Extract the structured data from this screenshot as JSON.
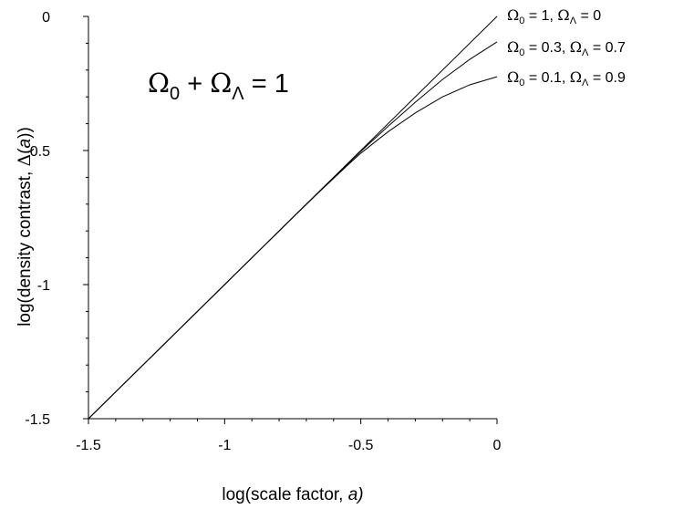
{
  "chart_data": {
    "type": "line",
    "xlabel": "log(scale factor, a)",
    "xlabel_parts": {
      "pre": "log(scale factor, ",
      "var": "a",
      "post": ")"
    },
    "ylabel": "log(density contrast, Δ(a))",
    "ylabel_parts": {
      "pre": "log(density contrast, ",
      "sym": "Δ",
      "open": "(",
      "var": "a",
      "post": "))"
    },
    "xlim": [
      -1.5,
      0
    ],
    "ylim": [
      -1.5,
      0
    ],
    "x_ticks": [
      {
        "value": -1.5,
        "label": "-1.5"
      },
      {
        "value": -1,
        "label": "-1"
      },
      {
        "value": -0.5,
        "label": "-0.5"
      },
      {
        "value": 0,
        "label": "0"
      }
    ],
    "y_ticks": [
      {
        "value": 0,
        "label": "0"
      },
      {
        "value": -0.5,
        "label": "-0.5"
      },
      {
        "value": -1,
        "label": "-1"
      },
      {
        "value": -1.5,
        "label": "-1.5"
      }
    ],
    "grid": false,
    "annotation": {
      "text": "Ω0 + ΩΛ = 1",
      "parts": [
        "Ω",
        "0",
        " + ",
        "Ω",
        "Λ",
        " = 1"
      ]
    },
    "series": [
      {
        "name": "Ω0 = 1,    ΩΛ = 0",
        "label_parts": [
          "Ω",
          "0",
          " = 1,    ",
          "Ω",
          "Λ",
          " = 0"
        ],
        "x": [
          -1.5,
          -1.25,
          -1.0,
          -0.75,
          -0.5,
          -0.25,
          0.0
        ],
        "y": [
          -1.5,
          -1.25,
          -1.0,
          -0.75,
          -0.5,
          -0.25,
          0.0
        ]
      },
      {
        "name": "Ω0 = 0.3, ΩΛ = 0.7",
        "label_parts": [
          "Ω",
          "0",
          " = 0.3, ",
          "Ω",
          "Λ",
          " = 0.7"
        ],
        "x": [
          -1.5,
          -1.25,
          -1.0,
          -0.75,
          -0.65,
          -0.5,
          -0.4,
          -0.3,
          -0.2,
          -0.1,
          0.0
        ],
        "y": [
          -1.5,
          -1.25,
          -1.0,
          -0.75,
          -0.65,
          -0.503,
          -0.41,
          -0.32,
          -0.235,
          -0.16,
          -0.095
        ]
      },
      {
        "name": "Ω0 = 0.1, ΩΛ = 0.9",
        "label_parts": [
          "Ω",
          "0",
          " = 0.1, ",
          "Ω",
          "Λ",
          " = 0.9"
        ],
        "x": [
          -1.5,
          -1.25,
          -1.0,
          -0.75,
          -0.65,
          -0.55,
          -0.5,
          -0.4,
          -0.3,
          -0.2,
          -0.1,
          0.0
        ],
        "y": [
          -1.5,
          -1.25,
          -1.0,
          -0.75,
          -0.652,
          -0.556,
          -0.51,
          -0.43,
          -0.36,
          -0.3,
          -0.255,
          -0.225
        ]
      }
    ]
  }
}
